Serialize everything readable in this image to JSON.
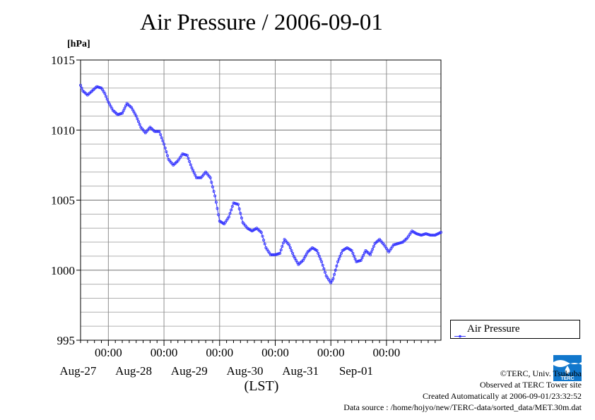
{
  "chart_data": {
    "type": "line",
    "title": "Air Pressure / 2006-09-01",
    "ylabel": "[hPa]",
    "xlabel": "(LST)",
    "ylim": [
      995,
      1015
    ],
    "yticks": [
      995,
      1000,
      1005,
      1010,
      1015
    ],
    "xlim": [
      "2006-08-26T12:00",
      "2006-09-01T23:30"
    ],
    "xticks": [
      {
        "time": "00:00",
        "date": "Aug-27"
      },
      {
        "time": "00:00",
        "date": "Aug-28"
      },
      {
        "time": "00:00",
        "date": "Aug-29"
      },
      {
        "time": "00:00",
        "date": "Aug-30"
      },
      {
        "time": "00:00",
        "date": "Aug-31"
      },
      {
        "time": "00:00",
        "date": "Sep-01"
      }
    ],
    "grid": true,
    "legend_position": "right",
    "series": [
      {
        "name": "Air Pressure",
        "color": "#3333ff",
        "marker": "circle",
        "points": [
          [
            "2006-08-26T12:00",
            1013.2
          ],
          [
            "2006-08-26T13:00",
            1012.8
          ],
          [
            "2006-08-26T15:00",
            1012.5
          ],
          [
            "2006-08-26T17:00",
            1012.8
          ],
          [
            "2006-08-26T19:00",
            1013.1
          ],
          [
            "2006-08-26T21:00",
            1013.0
          ],
          [
            "2006-08-26T22:30",
            1012.6
          ],
          [
            "2006-08-27T00:00",
            1012.0
          ],
          [
            "2006-08-27T02:00",
            1011.4
          ],
          [
            "2006-08-27T04:00",
            1011.1
          ],
          [
            "2006-08-27T06:00",
            1011.2
          ],
          [
            "2006-08-27T08:00",
            1011.9
          ],
          [
            "2006-08-27T10:00",
            1011.6
          ],
          [
            "2006-08-27T12:00",
            1011.0
          ],
          [
            "2006-08-27T14:00",
            1010.2
          ],
          [
            "2006-08-27T16:00",
            1009.8
          ],
          [
            "2006-08-27T18:00",
            1010.2
          ],
          [
            "2006-08-27T20:00",
            1009.9
          ],
          [
            "2006-08-27T22:00",
            1009.9
          ],
          [
            "2006-08-28T00:00",
            1009.0
          ],
          [
            "2006-08-28T02:00",
            1007.9
          ],
          [
            "2006-08-28T04:00",
            1007.5
          ],
          [
            "2006-08-28T06:00",
            1007.8
          ],
          [
            "2006-08-28T08:00",
            1008.3
          ],
          [
            "2006-08-28T10:00",
            1008.2
          ],
          [
            "2006-08-28T12:00",
            1007.3
          ],
          [
            "2006-08-28T14:00",
            1006.6
          ],
          [
            "2006-08-28T16:00",
            1006.6
          ],
          [
            "2006-08-28T18:00",
            1007.0
          ],
          [
            "2006-08-28T20:00",
            1006.6
          ],
          [
            "2006-08-28T22:00",
            1005.3
          ],
          [
            "2006-08-29T00:00",
            1003.5
          ],
          [
            "2006-08-29T02:00",
            1003.3
          ],
          [
            "2006-08-29T04:00",
            1003.8
          ],
          [
            "2006-08-29T06:00",
            1004.8
          ],
          [
            "2006-08-29T08:00",
            1004.7
          ],
          [
            "2006-08-29T10:00",
            1003.4
          ],
          [
            "2006-08-29T12:00",
            1003.0
          ],
          [
            "2006-08-29T14:00",
            1002.8
          ],
          [
            "2006-08-29T16:00",
            1003.0
          ],
          [
            "2006-08-29T18:00",
            1002.7
          ],
          [
            "2006-08-29T20:00",
            1001.6
          ],
          [
            "2006-08-29T22:00",
            1001.1
          ],
          [
            "2006-08-30T00:00",
            1001.1
          ],
          [
            "2006-08-30T02:00",
            1001.2
          ],
          [
            "2006-08-30T04:00",
            1002.2
          ],
          [
            "2006-08-30T06:00",
            1001.8
          ],
          [
            "2006-08-30T08:00",
            1001.0
          ],
          [
            "2006-08-30T10:00",
            1000.4
          ],
          [
            "2006-08-30T12:00",
            1000.7
          ],
          [
            "2006-08-30T14:00",
            1001.3
          ],
          [
            "2006-08-30T16:00",
            1001.6
          ],
          [
            "2006-08-30T18:00",
            1001.4
          ],
          [
            "2006-08-30T20:00",
            1000.6
          ],
          [
            "2006-08-30T22:00",
            999.6
          ],
          [
            "2006-08-31T00:00",
            999.1
          ],
          [
            "2006-08-31T01:00",
            999.4
          ],
          [
            "2006-08-31T03:00",
            1000.6
          ],
          [
            "2006-08-31T05:00",
            1001.4
          ],
          [
            "2006-08-31T07:00",
            1001.6
          ],
          [
            "2006-08-31T09:00",
            1001.4
          ],
          [
            "2006-08-31T11:00",
            1000.6
          ],
          [
            "2006-08-31T13:00",
            1000.7
          ],
          [
            "2006-08-31T15:00",
            1001.4
          ],
          [
            "2006-08-31T17:00",
            1001.1
          ],
          [
            "2006-08-31T19:00",
            1001.9
          ],
          [
            "2006-08-31T21:00",
            1002.2
          ],
          [
            "2006-08-31T23:00",
            1001.8
          ],
          [
            "2006-09-01T01:00",
            1001.3
          ],
          [
            "2006-09-01T03:00",
            1001.8
          ],
          [
            "2006-09-01T05:00",
            1001.9
          ],
          [
            "2006-09-01T07:00",
            1002.0
          ],
          [
            "2006-09-01T09:00",
            1002.3
          ],
          [
            "2006-09-01T11:00",
            1002.8
          ],
          [
            "2006-09-01T13:00",
            1002.6
          ],
          [
            "2006-09-01T15:00",
            1002.5
          ],
          [
            "2006-09-01T17:00",
            1002.6
          ],
          [
            "2006-09-01T19:00",
            1002.5
          ],
          [
            "2006-09-01T21:00",
            1002.5
          ],
          [
            "2006-09-01T23:30",
            1002.7
          ]
        ]
      }
    ]
  },
  "credits": {
    "copyright": "©TERC, Univ. Tsukuba",
    "observed": "Observed at TERC Tower site",
    "created": "Created Automatically at 2006-09-01/23:32:52",
    "source": "Data source : /home/hojyo/new/TERC-data/sorted_data/MET.30m.dat"
  },
  "logo": {
    "text": "TERC",
    "color": "#1177cc"
  }
}
